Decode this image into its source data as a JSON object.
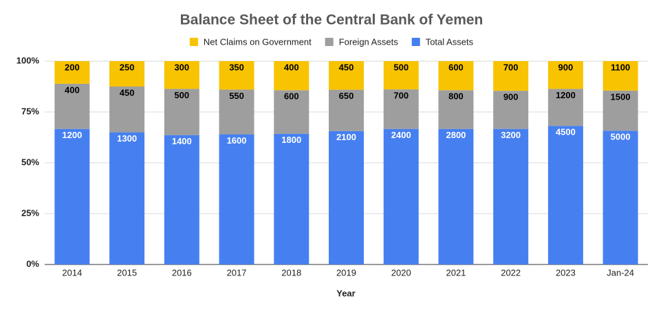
{
  "chart_data": {
    "type": "bar",
    "stacking": "percent",
    "title": "Balance Sheet of the Central Bank of Yemen",
    "x_label": "Year",
    "categories": [
      "2014",
      "2015",
      "2016",
      "2017",
      "2018",
      "2019",
      "2020",
      "2021",
      "2022",
      "2023",
      "Jan-24"
    ],
    "series": [
      {
        "name": "Total Assets",
        "color": "#4680f0",
        "label_color": "#ffffff",
        "values": [
          1200,
          1300,
          1400,
          1600,
          1800,
          2100,
          2400,
          2800,
          3200,
          4500,
          5000
        ]
      },
      {
        "name": "Foreign Assets",
        "color": "#9e9e9e",
        "label_color": "#000000",
        "values": [
          400,
          450,
          500,
          550,
          600,
          650,
          700,
          800,
          900,
          1200,
          1500
        ]
      },
      {
        "name": "Net Claims on Government",
        "color": "#f8c300",
        "label_color": "#000000",
        "values": [
          200,
          250,
          300,
          350,
          400,
          450,
          500,
          600,
          700,
          900,
          1100
        ]
      }
    ],
    "legend_order": [
      2,
      1,
      0
    ],
    "ylim": [
      0,
      100
    ],
    "yticks": [
      {
        "value": 0,
        "label": "0%"
      },
      {
        "value": 25,
        "label": "25%"
      },
      {
        "value": 50,
        "label": "50%"
      },
      {
        "value": 75,
        "label": "75%"
      },
      {
        "value": 100,
        "label": "100%"
      }
    ],
    "grid": true
  }
}
